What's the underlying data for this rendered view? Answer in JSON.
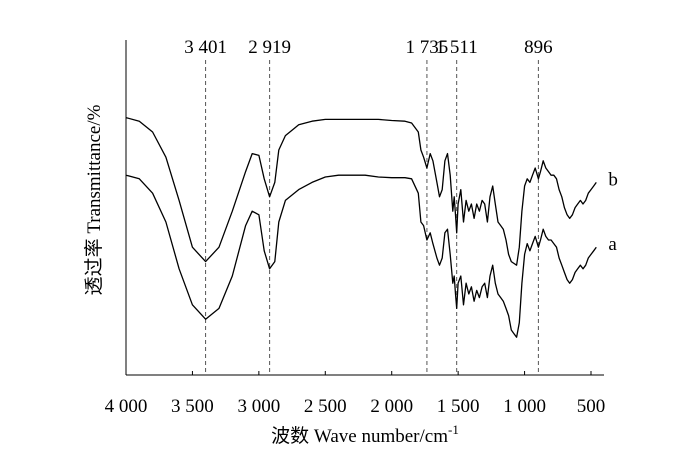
{
  "chart_data": {
    "type": "line",
    "title": "",
    "xlabel": "波数 Wave number/cm",
    "xlabel_superscript": "-1",
    "ylabel": "透过率 Transmittance/%",
    "x_reversed": true,
    "xlim": [
      4000,
      450
    ],
    "ylim": [
      0,
      100
    ],
    "x_ticks": [
      4000,
      3500,
      3000,
      2500,
      2000,
      1500,
      1000,
      500
    ],
    "x_tick_labels": [
      "4 000",
      "3 500",
      "3 000",
      "2 500",
      "2 000",
      "1 500",
      "1 000",
      "500"
    ],
    "y_tick_labels_shown": false,
    "grid": false,
    "peak_markers": [
      {
        "x": 3401,
        "label": "3 401"
      },
      {
        "x": 2919,
        "label": "2 919"
      },
      {
        "x": 1735,
        "label": "1 735"
      },
      {
        "x": 1511,
        "label": "1 511"
      },
      {
        "x": 896,
        "label": "896"
      }
    ],
    "series": [
      {
        "name": "b",
        "color": "#000000",
        "points": [
          [
            4000,
            84
          ],
          [
            3900,
            83
          ],
          [
            3800,
            80
          ],
          [
            3700,
            73
          ],
          [
            3600,
            61
          ],
          [
            3500,
            48
          ],
          [
            3401,
            44
          ],
          [
            3300,
            48
          ],
          [
            3200,
            58
          ],
          [
            3100,
            69
          ],
          [
            3050,
            74
          ],
          [
            3000,
            73.5
          ],
          [
            2960,
            67
          ],
          [
            2919,
            62
          ],
          [
            2880,
            66
          ],
          [
            2850,
            75
          ],
          [
            2800,
            79
          ],
          [
            2700,
            82
          ],
          [
            2600,
            83
          ],
          [
            2500,
            83.5
          ],
          [
            2400,
            83.5
          ],
          [
            2300,
            83.5
          ],
          [
            2200,
            83.5
          ],
          [
            2100,
            83.5
          ],
          [
            2000,
            83.2
          ],
          [
            1900,
            83
          ],
          [
            1850,
            82.5
          ],
          [
            1800,
            80
          ],
          [
            1780,
            75
          ],
          [
            1760,
            73
          ],
          [
            1735,
            70
          ],
          [
            1710,
            74
          ],
          [
            1690,
            72
          ],
          [
            1660,
            66
          ],
          [
            1640,
            62
          ],
          [
            1620,
            64
          ],
          [
            1600,
            72
          ],
          [
            1580,
            74
          ],
          [
            1560,
            68
          ],
          [
            1540,
            58
          ],
          [
            1530,
            62
          ],
          [
            1520,
            57
          ],
          [
            1511,
            52
          ],
          [
            1500,
            60
          ],
          [
            1480,
            64
          ],
          [
            1460,
            55
          ],
          [
            1440,
            61
          ],
          [
            1420,
            58
          ],
          [
            1400,
            60
          ],
          [
            1380,
            56
          ],
          [
            1360,
            60
          ],
          [
            1340,
            58
          ],
          [
            1320,
            61
          ],
          [
            1300,
            60
          ],
          [
            1280,
            55
          ],
          [
            1260,
            62
          ],
          [
            1240,
            65
          ],
          [
            1220,
            60
          ],
          [
            1200,
            55
          ],
          [
            1180,
            54
          ],
          [
            1160,
            53
          ],
          [
            1140,
            50
          ],
          [
            1120,
            46
          ],
          [
            1100,
            44
          ],
          [
            1080,
            43.5
          ],
          [
            1060,
            43
          ],
          [
            1040,
            48
          ],
          [
            1020,
            58
          ],
          [
            1000,
            65
          ],
          [
            980,
            67
          ],
          [
            960,
            66
          ],
          [
            940,
            68
          ],
          [
            920,
            70
          ],
          [
            896,
            67
          ],
          [
            880,
            69
          ],
          [
            860,
            72
          ],
          [
            840,
            70
          ],
          [
            820,
            69
          ],
          [
            800,
            68
          ],
          [
            780,
            68
          ],
          [
            760,
            67
          ],
          [
            740,
            64
          ],
          [
            720,
            62
          ],
          [
            700,
            59
          ],
          [
            680,
            57
          ],
          [
            660,
            56
          ],
          [
            640,
            57
          ],
          [
            620,
            59
          ],
          [
            600,
            60
          ],
          [
            580,
            61
          ],
          [
            560,
            60
          ],
          [
            540,
            61
          ],
          [
            520,
            63
          ],
          [
            500,
            64
          ],
          [
            480,
            65
          ],
          [
            460,
            66
          ]
        ]
      },
      {
        "name": "a",
        "color": "#000000",
        "points": [
          [
            4000,
            68
          ],
          [
            3900,
            67
          ],
          [
            3800,
            63
          ],
          [
            3700,
            55
          ],
          [
            3600,
            42
          ],
          [
            3500,
            32
          ],
          [
            3401,
            28
          ],
          [
            3300,
            31
          ],
          [
            3200,
            40
          ],
          [
            3100,
            54
          ],
          [
            3050,
            58
          ],
          [
            3000,
            57
          ],
          [
            2960,
            47
          ],
          [
            2919,
            42
          ],
          [
            2880,
            44
          ],
          [
            2850,
            55
          ],
          [
            2800,
            61
          ],
          [
            2700,
            64
          ],
          [
            2600,
            66
          ],
          [
            2500,
            67.5
          ],
          [
            2400,
            68
          ],
          [
            2300,
            68
          ],
          [
            2200,
            68
          ],
          [
            2100,
            67.5
          ],
          [
            2000,
            67.3
          ],
          [
            1900,
            67.3
          ],
          [
            1850,
            67
          ],
          [
            1800,
            63
          ],
          [
            1780,
            55
          ],
          [
            1760,
            54
          ],
          [
            1735,
            50
          ],
          [
            1710,
            52
          ],
          [
            1690,
            49
          ],
          [
            1660,
            45
          ],
          [
            1640,
            43
          ],
          [
            1620,
            45
          ],
          [
            1600,
            52
          ],
          [
            1580,
            53
          ],
          [
            1560,
            46
          ],
          [
            1540,
            38
          ],
          [
            1530,
            40
          ],
          [
            1520,
            35
          ],
          [
            1511,
            31
          ],
          [
            1500,
            38
          ],
          [
            1480,
            40
          ],
          [
            1460,
            32
          ],
          [
            1440,
            38
          ],
          [
            1420,
            35
          ],
          [
            1400,
            37
          ],
          [
            1380,
            33
          ],
          [
            1360,
            36
          ],
          [
            1340,
            34
          ],
          [
            1320,
            37
          ],
          [
            1300,
            38
          ],
          [
            1280,
            34
          ],
          [
            1260,
            40
          ],
          [
            1240,
            43
          ],
          [
            1220,
            38
          ],
          [
            1200,
            35
          ],
          [
            1180,
            34
          ],
          [
            1160,
            33
          ],
          [
            1140,
            31
          ],
          [
            1120,
            29
          ],
          [
            1100,
            25
          ],
          [
            1080,
            24
          ],
          [
            1060,
            23
          ],
          [
            1040,
            27
          ],
          [
            1020,
            38
          ],
          [
            1000,
            46
          ],
          [
            980,
            49
          ],
          [
            960,
            47
          ],
          [
            940,
            49
          ],
          [
            920,
            51
          ],
          [
            896,
            48
          ],
          [
            880,
            50
          ],
          [
            860,
            53
          ],
          [
            840,
            51
          ],
          [
            820,
            50
          ],
          [
            800,
            50
          ],
          [
            780,
            49
          ],
          [
            760,
            48
          ],
          [
            740,
            45
          ],
          [
            720,
            43
          ],
          [
            700,
            41
          ],
          [
            680,
            39
          ],
          [
            660,
            38
          ],
          [
            640,
            39
          ],
          [
            620,
            41
          ],
          [
            600,
            42
          ],
          [
            580,
            43
          ],
          [
            560,
            42
          ],
          [
            540,
            43
          ],
          [
            520,
            45
          ],
          [
            500,
            46
          ],
          [
            480,
            47
          ],
          [
            460,
            48
          ]
        ]
      }
    ]
  }
}
